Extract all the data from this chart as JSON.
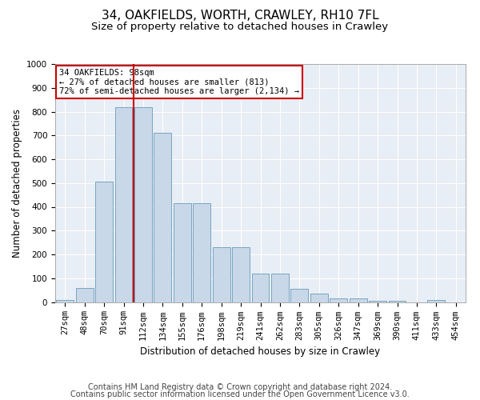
{
  "title1": "34, OAKFIELDS, WORTH, CRAWLEY, RH10 7FL",
  "title2": "Size of property relative to detached houses in Crawley",
  "xlabel": "Distribution of detached houses by size in Crawley",
  "ylabel": "Number of detached properties",
  "footer1": "Contains HM Land Registry data © Crown copyright and database right 2024.",
  "footer2": "Contains public sector information licensed under the Open Government Licence v3.0.",
  "categories": [
    "27sqm",
    "48sqm",
    "70sqm",
    "91sqm",
    "112sqm",
    "134sqm",
    "155sqm",
    "176sqm",
    "198sqm",
    "219sqm",
    "241sqm",
    "262sqm",
    "283sqm",
    "305sqm",
    "326sqm",
    "347sqm",
    "369sqm",
    "390sqm",
    "411sqm",
    "433sqm",
    "454sqm"
  ],
  "bar_heights": [
    7,
    60,
    505,
    820,
    820,
    710,
    415,
    415,
    230,
    230,
    120,
    120,
    57,
    35,
    15,
    15,
    5,
    5,
    0,
    10,
    0
  ],
  "bar_color": "#c8d8e8",
  "bar_edge_color": "#6a9abb",
  "vline_color": "#cc0000",
  "annotation_text": "34 OAKFIELDS: 98sqm\n← 27% of detached houses are smaller (813)\n72% of semi-detached houses are larger (2,134) →",
  "annotation_box_color": "#ffffff",
  "annotation_box_edge_color": "#cc0000",
  "ylim": [
    0,
    1000
  ],
  "yticks": [
    0,
    100,
    200,
    300,
    400,
    500,
    600,
    700,
    800,
    900,
    1000
  ],
  "plot_bg_color": "#e8eef5",
  "grid_color": "#ffffff",
  "title_fontsize": 11,
  "subtitle_fontsize": 9.5,
  "axis_label_fontsize": 8.5,
  "tick_fontsize": 7.5,
  "footer_fontsize": 7
}
